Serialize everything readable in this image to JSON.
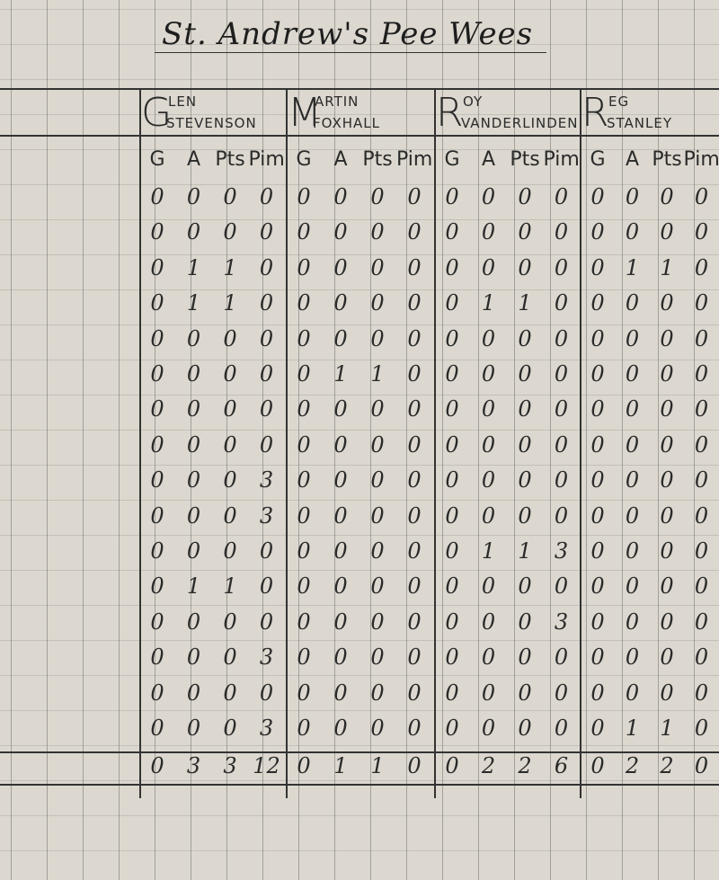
{
  "title": "St. Andrew's Pee Wees",
  "column_labels": [
    "G",
    "A",
    "Pts",
    "Pim"
  ],
  "players": [
    {
      "initial": "G",
      "first_rest": "LEN",
      "last": "STEVENSON"
    },
    {
      "initial": "M",
      "first_rest": "ARTIN",
      "last": "FOXHALL"
    },
    {
      "initial": "R",
      "first_rest": "OY",
      "last": "VANDERLINDEN"
    },
    {
      "initial": "R",
      "first_rest": "EG",
      "last": "STANLEY"
    }
  ],
  "rows": [
    [
      [
        "0",
        "0",
        "0",
        "0"
      ],
      [
        "0",
        "0",
        "0",
        "0"
      ],
      [
        "0",
        "0",
        "0",
        "0"
      ],
      [
        "0",
        "0",
        "0",
        "0"
      ]
    ],
    [
      [
        "0",
        "0",
        "0",
        "0"
      ],
      [
        "0",
        "0",
        "0",
        "0"
      ],
      [
        "0",
        "0",
        "0",
        "0"
      ],
      [
        "0",
        "0",
        "0",
        "0"
      ]
    ],
    [
      [
        "0",
        "1",
        "1",
        "0"
      ],
      [
        "0",
        "0",
        "0",
        "0"
      ],
      [
        "0",
        "0",
        "0",
        "0"
      ],
      [
        "0",
        "1",
        "1",
        "0"
      ]
    ],
    [
      [
        "0",
        "1",
        "1",
        "0"
      ],
      [
        "0",
        "0",
        "0",
        "0"
      ],
      [
        "0",
        "1",
        "1",
        "0"
      ],
      [
        "0",
        "0",
        "0",
        "0"
      ]
    ],
    [
      [
        "0",
        "0",
        "0",
        "0"
      ],
      [
        "0",
        "0",
        "0",
        "0"
      ],
      [
        "0",
        "0",
        "0",
        "0"
      ],
      [
        "0",
        "0",
        "0",
        "0"
      ]
    ],
    [
      [
        "0",
        "0",
        "0",
        "0"
      ],
      [
        "0",
        "1",
        "1",
        "0"
      ],
      [
        "0",
        "0",
        "0",
        "0"
      ],
      [
        "0",
        "0",
        "0",
        "0"
      ]
    ],
    [
      [
        "0",
        "0",
        "0",
        "0"
      ],
      [
        "0",
        "0",
        "0",
        "0"
      ],
      [
        "0",
        "0",
        "0",
        "0"
      ],
      [
        "0",
        "0",
        "0",
        "0"
      ]
    ],
    [
      [
        "0",
        "0",
        "0",
        "0"
      ],
      [
        "0",
        "0",
        "0",
        "0"
      ],
      [
        "0",
        "0",
        "0",
        "0"
      ],
      [
        "0",
        "0",
        "0",
        "0"
      ]
    ],
    [
      [
        "0",
        "0",
        "0",
        "3"
      ],
      [
        "0",
        "0",
        "0",
        "0"
      ],
      [
        "0",
        "0",
        "0",
        "0"
      ],
      [
        "0",
        "0",
        "0",
        "0"
      ]
    ],
    [
      [
        "0",
        "0",
        "0",
        "3"
      ],
      [
        "0",
        "0",
        "0",
        "0"
      ],
      [
        "0",
        "0",
        "0",
        "0"
      ],
      [
        "0",
        "0",
        "0",
        "0"
      ]
    ],
    [
      [
        "0",
        "0",
        "0",
        "0"
      ],
      [
        "0",
        "0",
        "0",
        "0"
      ],
      [
        "0",
        "1",
        "1",
        "3"
      ],
      [
        "0",
        "0",
        "0",
        "0"
      ]
    ],
    [
      [
        "0",
        "1",
        "1",
        "0"
      ],
      [
        "0",
        "0",
        "0",
        "0"
      ],
      [
        "0",
        "0",
        "0",
        "0"
      ],
      [
        "0",
        "0",
        "0",
        "0"
      ]
    ],
    [
      [
        "0",
        "0",
        "0",
        "0"
      ],
      [
        "0",
        "0",
        "0",
        "0"
      ],
      [
        "0",
        "0",
        "0",
        "3"
      ],
      [
        "0",
        "0",
        "0",
        "0"
      ]
    ],
    [
      [
        "0",
        "0",
        "0",
        "3"
      ],
      [
        "0",
        "0",
        "0",
        "0"
      ],
      [
        "0",
        "0",
        "0",
        "0"
      ],
      [
        "0",
        "0",
        "0",
        "0"
      ]
    ],
    [
      [
        "0",
        "0",
        "0",
        "0"
      ],
      [
        "0",
        "0",
        "0",
        "0"
      ],
      [
        "0",
        "0",
        "0",
        "0"
      ],
      [
        "0",
        "0",
        "0",
        "0"
      ]
    ],
    [
      [
        "0",
        "0",
        "0",
        "3"
      ],
      [
        "0",
        "0",
        "0",
        "0"
      ],
      [
        "0",
        "0",
        "0",
        "0"
      ],
      [
        "0",
        "1",
        "1",
        "0"
      ]
    ]
  ],
  "totals": [
    [
      "0",
      "3",
      "3",
      "12"
    ],
    [
      "0",
      "1",
      "1",
      "0"
    ],
    [
      "0",
      "2",
      "2",
      "6"
    ],
    [
      "0",
      "2",
      "2",
      "0"
    ]
  ]
}
